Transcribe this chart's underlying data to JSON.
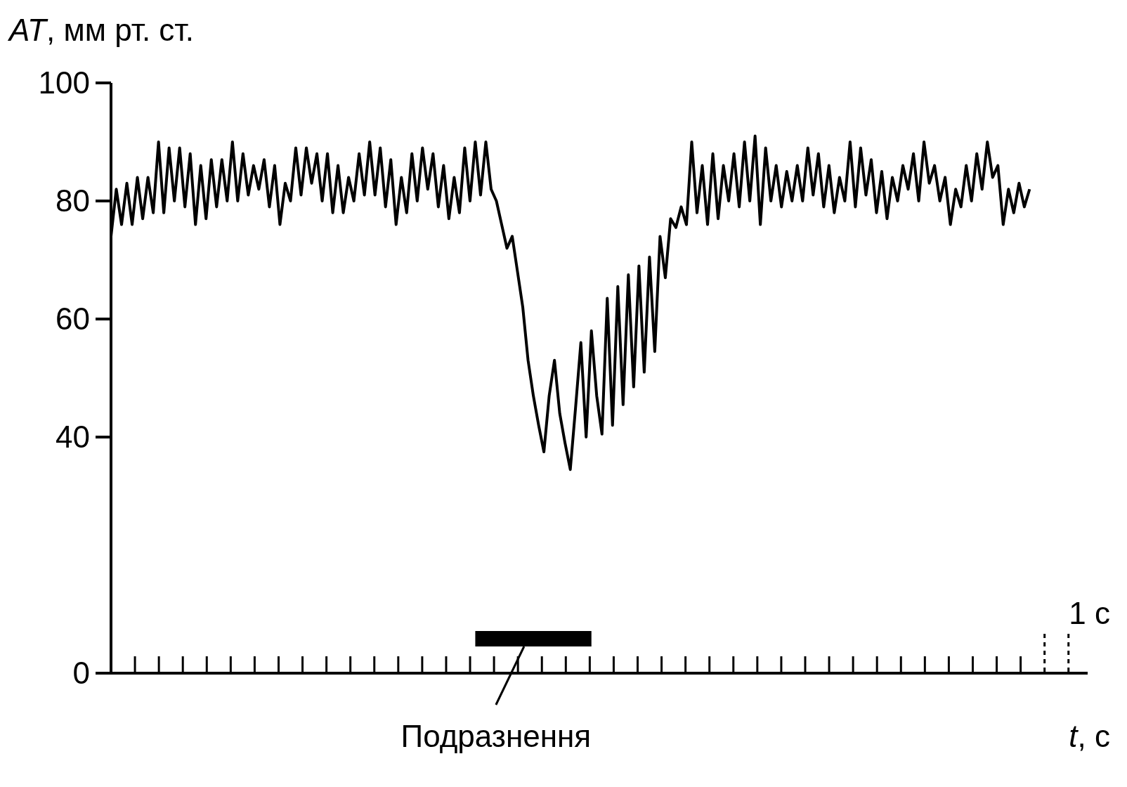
{
  "chart_data": {
    "type": "line",
    "xlabel": "t, с",
    "ylabel": "AT, мм рт. ст.",
    "annotations": [
      "Подразнення",
      "1 с"
    ],
    "categories": [
      null,
      null,
      null,
      null,
      null,
      null,
      null,
      null,
      null,
      null,
      null,
      null,
      null,
      null,
      null,
      null,
      null,
      null,
      null,
      null,
      null,
      null,
      null,
      null,
      null,
      null,
      null,
      null,
      null,
      null,
      null,
      null,
      null,
      null,
      null,
      null,
      null,
      null,
      null,
      null,
      null,
      null,
      null,
      null,
      null,
      null,
      null,
      null,
      null,
      null,
      null,
      null,
      null,
      null,
      null,
      null,
      null,
      null,
      null,
      null,
      null,
      null,
      null,
      null,
      null,
      null,
      null,
      null,
      null,
      null,
      null,
      null,
      null,
      null,
      null,
      null,
      null,
      null,
      null,
      null,
      null,
      null,
      null,
      null,
      null,
      null,
      null,
      null,
      null,
      null,
      null,
      null,
      null,
      null,
      null,
      null,
      null,
      null,
      null,
      null,
      null,
      null,
      null,
      null,
      null,
      null,
      null,
      null,
      null,
      null,
      null,
      null,
      null,
      null,
      null,
      null,
      null,
      null,
      null,
      null,
      null,
      null,
      null,
      null,
      null,
      null,
      null,
      null,
      null,
      null,
      null,
      null,
      null,
      null,
      null,
      null,
      null,
      null,
      null,
      null,
      null,
      null,
      null,
      null,
      null,
      null,
      null,
      null,
      null,
      null,
      null,
      null,
      null,
      null,
      null,
      null,
      null,
      null,
      null,
      null,
      null,
      null,
      null,
      null,
      null,
      null,
      null,
      null,
      null,
      null,
      null,
      null,
      null,
      null,
      null,
      null,
      null,
      null,
      null,
      null,
      null,
      null,
      null,
      null,
      null,
      null
    ],
    "values": [
      74,
      82,
      76,
      83,
      76,
      84,
      77,
      84,
      78,
      90,
      78,
      89,
      80,
      89,
      79,
      88,
      76,
      86,
      77,
      87,
      79,
      87,
      80,
      90,
      80,
      88,
      81,
      86,
      82,
      87,
      79,
      86,
      76,
      83,
      80,
      89,
      81,
      89,
      83,
      88,
      80,
      88,
      78,
      86,
      78,
      84,
      80,
      88,
      81,
      90,
      81,
      89,
      79,
      87,
      76,
      84,
      78,
      88,
      80,
      89,
      82,
      88,
      79,
      86,
      77,
      84,
      78,
      89,
      80,
      90,
      81,
      90,
      82,
      80,
      76,
      72,
      74,
      68,
      62,
      53,
      47,
      42,
      37.5,
      47,
      53,
      44,
      39,
      34.5,
      45,
      56,
      40,
      58,
      47,
      40.5,
      63.5,
      42,
      65.5,
      45.5,
      67.5,
      48.5,
      69,
      51,
      70.5,
      54.5,
      74,
      67,
      77,
      75.5,
      79,
      76,
      90,
      78,
      86,
      76,
      88,
      77,
      86,
      80,
      88,
      79,
      90,
      80,
      91,
      76,
      89,
      80,
      86,
      79,
      85,
      80,
      86,
      80,
      89,
      81,
      88,
      79,
      86,
      78,
      84,
      80,
      90,
      79,
      89,
      81,
      87,
      78,
      85,
      77,
      84,
      80,
      86,
      82,
      88,
      80,
      90,
      83,
      86,
      80,
      84,
      76,
      82,
      79,
      86,
      80,
      88,
      82,
      90,
      84,
      86,
      76,
      82,
      78,
      83,
      79,
      82,
      null,
      null,
      null,
      null,
      null,
      null,
      null,
      null,
      null,
      null,
      null
    ],
    "color": "#000000",
    "ylim": [
      0,
      100
    ],
    "yticks": [
      0,
      40,
      60,
      80,
      100
    ],
    "tick_labels": "y"
  }
}
